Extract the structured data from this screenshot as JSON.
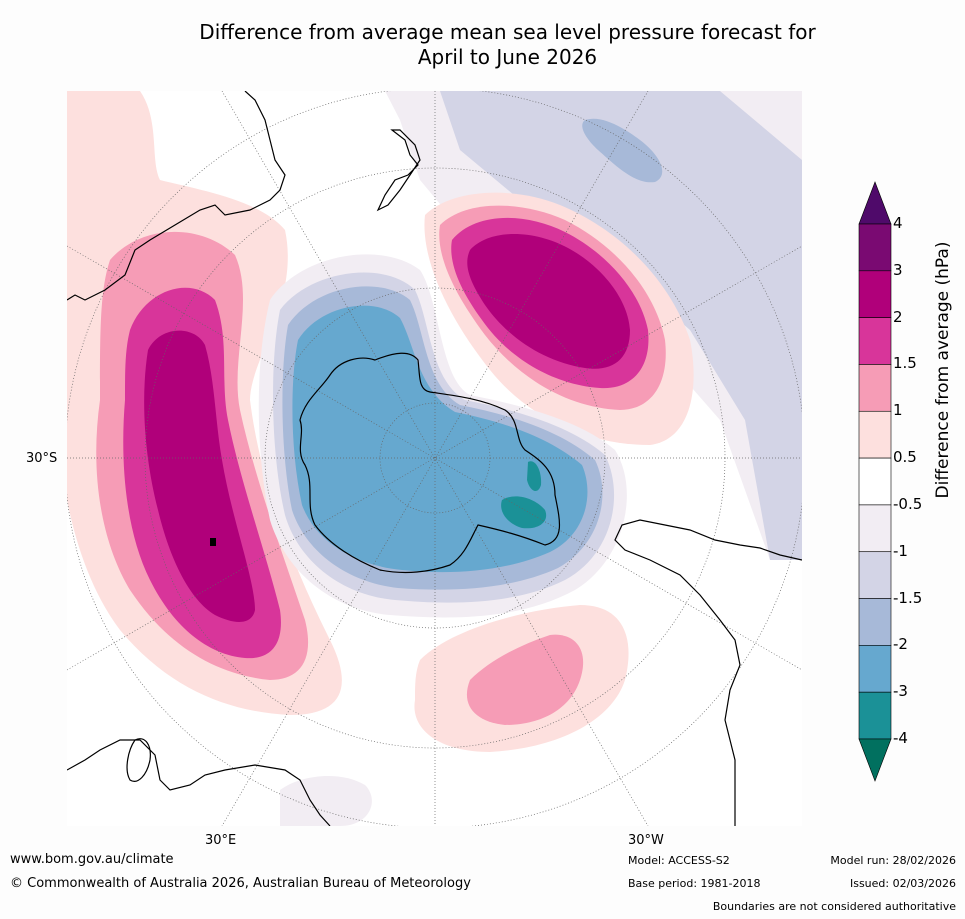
{
  "title_line1": "Difference from average mean sea level pressure forecast for",
  "title_line2": "April to June 2026",
  "map": {
    "projection": "south polar stereographic",
    "lat_label": "30°S",
    "lon_label_left": "30°E",
    "lon_label_right": "30°W"
  },
  "colorbar": {
    "title": "Difference from average (hPa)",
    "ticks": [
      "4",
      "3",
      "2",
      "1.5",
      "1",
      "0.5",
      "-0.5",
      "-1",
      "-1.5",
      "-2",
      "-3",
      "-4"
    ],
    "colors": [
      "#4f0a6a",
      "#7a0a72",
      "#b0007a",
      "#d8359a",
      "#f69cb6",
      "#fde0de",
      "#ffffff",
      "#f2edf3",
      "#d3d4e6",
      "#a7b9d8",
      "#66a8cf",
      "#1b9197",
      "#01705f"
    ]
  },
  "footer": {
    "website": "www.bom.gov.au/climate",
    "copyright": "© Commonwealth of Australia 2026, Australian Bureau of Meteorology",
    "model": "Model: ACCESS-S2",
    "base_period": "Base period: 1981-2018",
    "model_run": "Model run: 28/02/2026",
    "issued": "Issued: 02/03/2026",
    "disclaimer": "Boundaries are not considered authoritative"
  }
}
